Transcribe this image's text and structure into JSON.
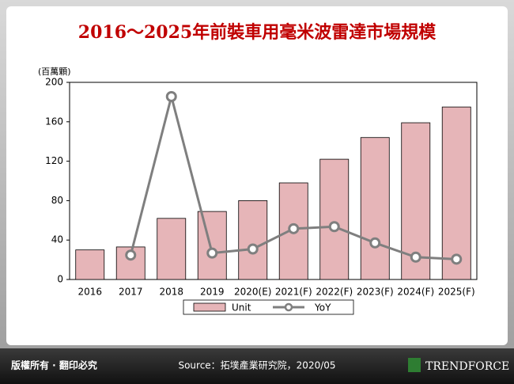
{
  "chart_data": {
    "type": "bar_line",
    "title": "2016～2025年前裝車用毫米波雷達市場規模",
    "y_label": "(百萬顆)",
    "categories": [
      "2016",
      "2017",
      "2018",
      "2019",
      "2020(E)",
      "2021(F)",
      "2022(F)",
      "2023(F)",
      "2024(F)",
      "2025(F)"
    ],
    "series": [
      {
        "name": "Unit",
        "color": "#e6b5b8",
        "values": [
          30,
          33,
          62,
          69,
          80,
          98,
          122,
          144,
          159,
          175
        ]
      },
      {
        "name": "YoY",
        "color": "#7f7f7f",
        "axis": "y2",
        "values": [
          null,
          10,
          88,
          11,
          13,
          23,
          24,
          16,
          9,
          8
        ]
      }
    ],
    "ylim": [
      0,
      200
    ],
    "yticks": [
      0,
      40,
      80,
      120,
      160,
      200
    ],
    "y2lim": [
      -2,
      95
    ]
  },
  "footer": {
    "rights": "版權所有 · 翻印必究",
    "source": "Source：拓墣產業研究院，2020/05",
    "logo": "TRENDFORCE"
  }
}
